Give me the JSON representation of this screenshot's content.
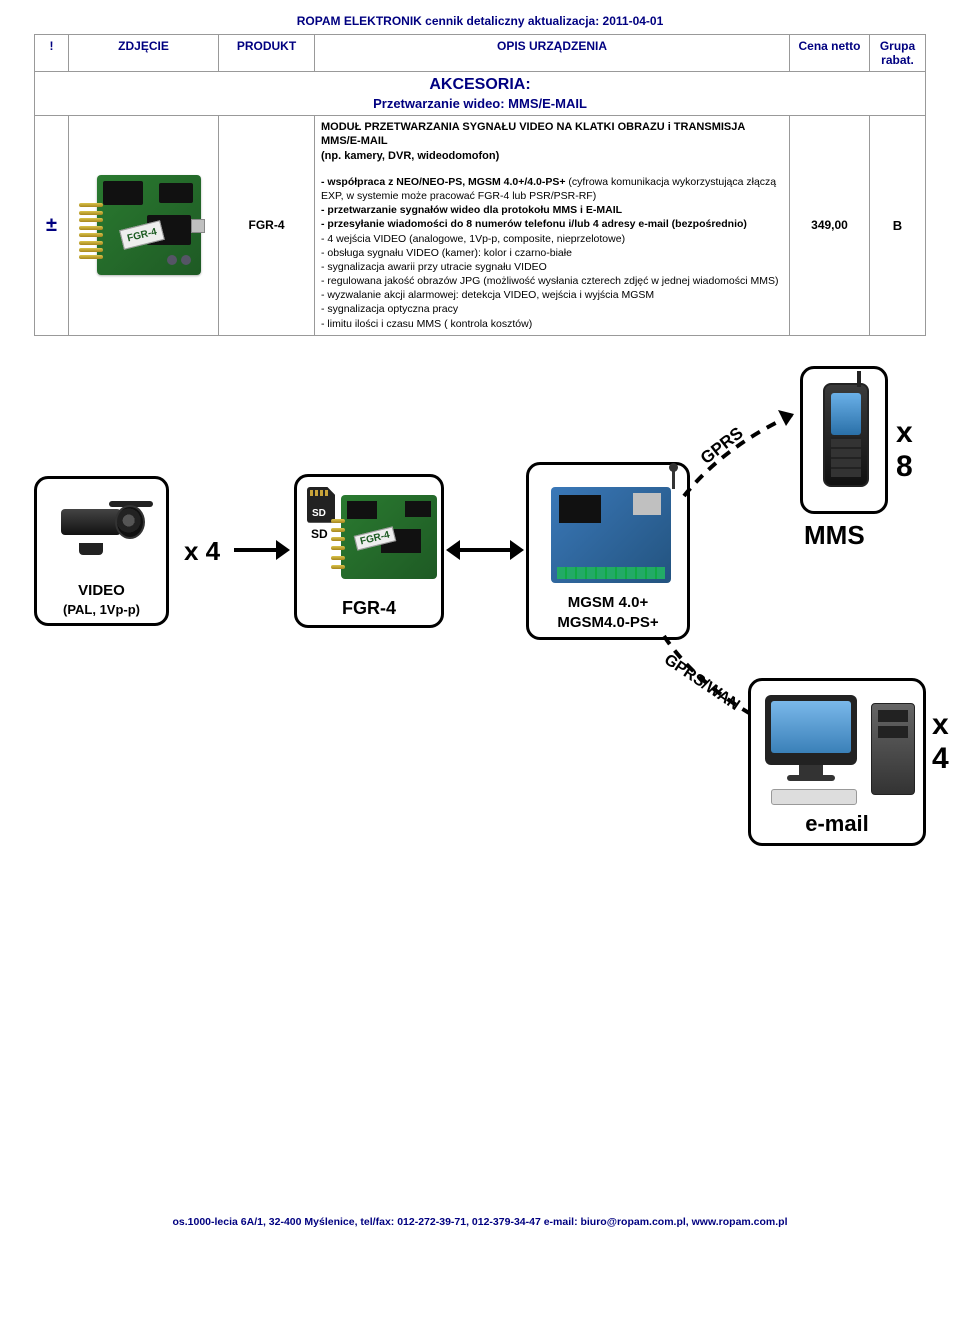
{
  "header": "ROPAM ELEKTRONIK cennik detaliczny aktualizacja: 2011-04-01",
  "columns": {
    "mark": "!",
    "photo": "ZDJĘCIE",
    "product": "PRODUKT",
    "desc": "OPIS URZĄDZENIA",
    "price": "Cena netto",
    "group": "Grupa rabat."
  },
  "section": {
    "title": "AKCESORIA:",
    "subtitle": "Przetwarzanie wideo: MMS/E-MAIL"
  },
  "row": {
    "mark": "±",
    "product": "FGR-4",
    "pcb_label": "FGR-4",
    "price": "349,00",
    "group": "B",
    "desc_top": "MODUŁ PRZETWARZANIA SYGNAŁU VIDEO NA KLATKI OBRAZU i TRANSMISJA MMS/E-MAIL\n(np. kamery, DVR, wideodomofon)",
    "desc_lines": [
      {
        "t": "- współpraca z NEO/NEO-PS, MGSM 4.0+/4.0-PS+",
        "b": true,
        "tail": " (cyfrowa komunikacja wykorzystująca złączą EXP, w systemie może pracować FGR-4 lub PSR/PSR-RF)"
      },
      {
        "t": "- przetwarzanie sygnałów wideo dla protokołu MMS i E-MAIL",
        "b": true
      },
      {
        "t": "- przesyłanie wiadomości do 8 numerów telefonu i/lub 4 adresy e-mail (bezpośrednio)",
        "b": true
      },
      {
        "t": "- 4 wejścia VIDEO (analogowe, 1Vp-p, composite, nieprzelotowe)"
      },
      {
        "t": "- obsługa sygnału VIDEO (kamer): kolor i czarno-białe"
      },
      {
        "t": "- sygnalizacja awarii przy utracie sygnału VIDEO"
      },
      {
        "t": "- regulowana jakość obrazów JPG (możliwość wysłania czterech zdjęć w jednej wiadomości MMS)"
      },
      {
        "t": "- wyzwalanie akcji alarmowej: detekcja VIDEO, wejścia i wyjścia MGSM"
      },
      {
        "t": "- sygnalizacja optyczna pracy"
      },
      {
        "t": "- limitu ilości i czasu MMS ( kontrola kosztów)"
      }
    ]
  },
  "diagram": {
    "video_box": {
      "l1": "VIDEO",
      "l2": "(PAL, 1Vp-p)"
    },
    "x4": "x 4",
    "sd": "SD",
    "fgr_label": "FGR-4",
    "fgr_pcb_label": "FGR-4",
    "mgsm_l1": "MGSM 4.0+",
    "mgsm_l2": "MGSM4.0-PS+",
    "x8": "x 8",
    "mms": "MMS",
    "gprs": "GPRS",
    "gprs_wan": "GPRS/WAN",
    "x4b": "x 4",
    "email": "e-mail"
  },
  "footer": "os.1000-lecia 6A/1,  32-400 Myślenice, tel/fax: 012-272-39-71, 012-379-34-47  e-mail: biuro@ropam.com.pl,  www.ropam.com.pl"
}
